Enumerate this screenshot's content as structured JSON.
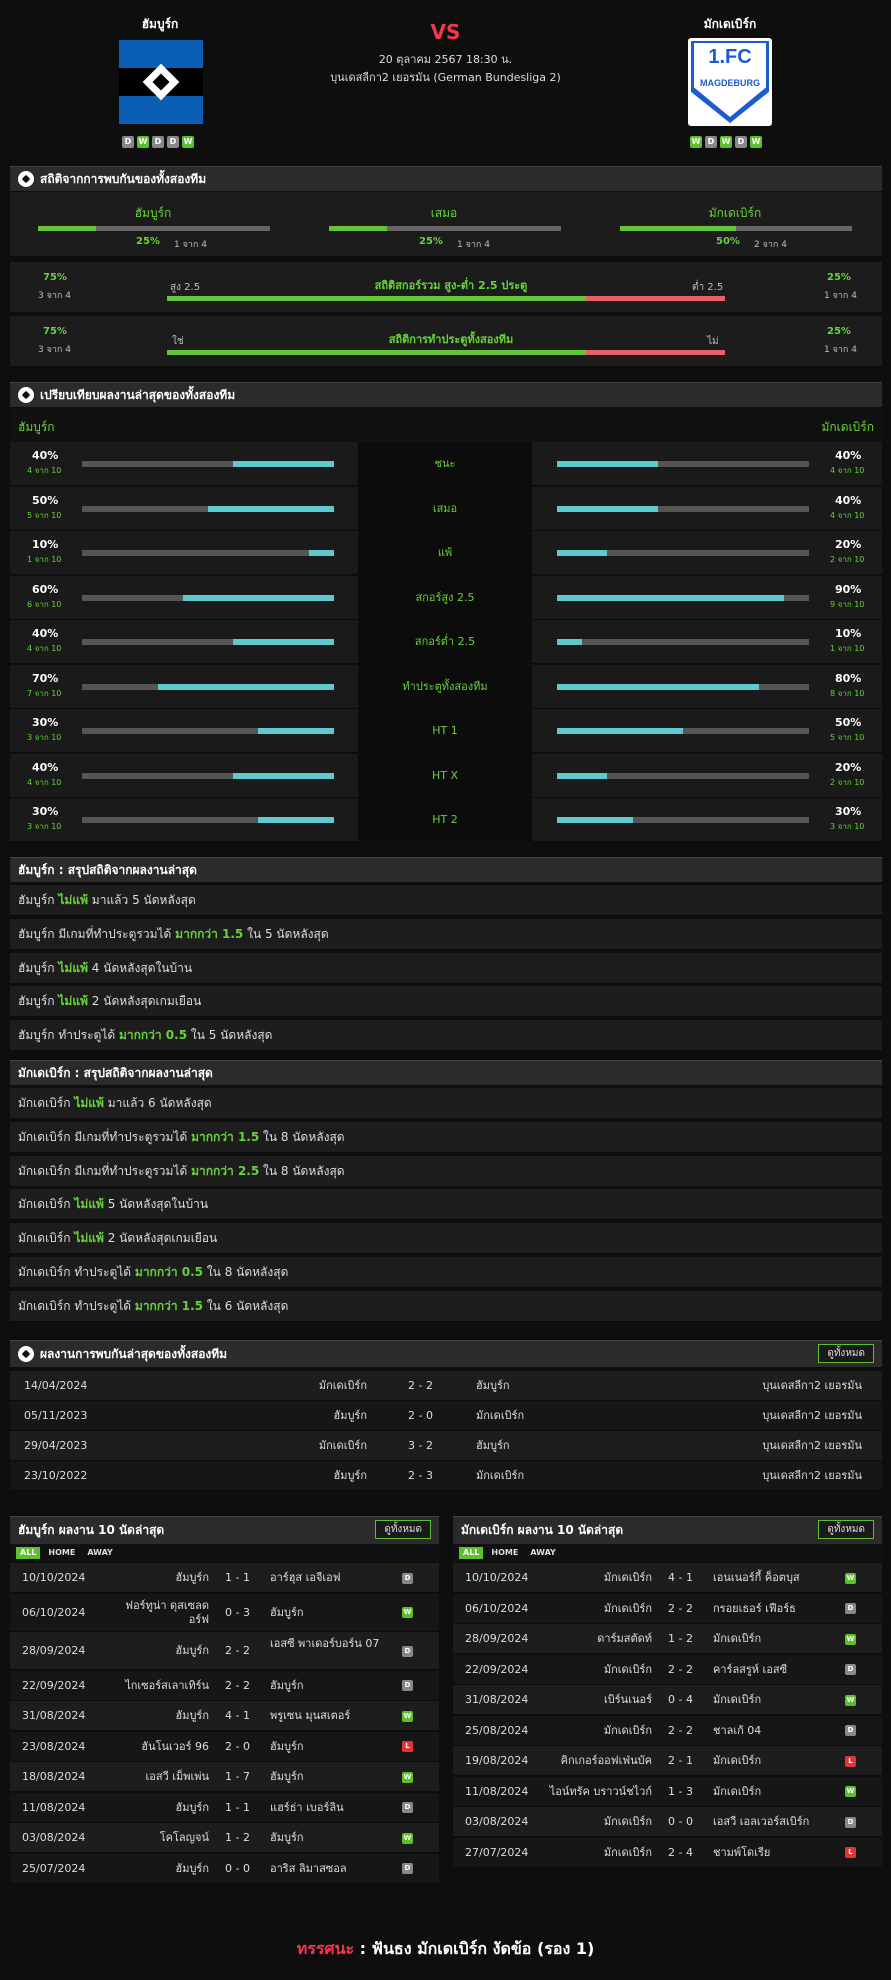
{
  "header": {
    "home_name": "ฮัมบูร์ก",
    "away_name": "มักเดเบิร์ก",
    "vs": "VS",
    "datetime": "20 ตุลาคม 2567 18:30 น.",
    "league": "บุนเดสลีกา2 เยอรมัน (German Bundesliga 2)",
    "home_form": [
      "D",
      "W",
      "D",
      "D",
      "W"
    ],
    "away_form": [
      "W",
      "D",
      "W",
      "D",
      "W"
    ],
    "away_logo_text1": "1.FC",
    "away_logo_text2": "MAGDEBURG",
    "colors": {
      "hsv_blue": "#0a5fb4",
      "fcm_blue": "#1d5bd0",
      "accent_red": "#f2374f",
      "green": "#66d33a",
      "teal": "#5ec9cf"
    }
  },
  "h2h": {
    "title": "สถิติจากการพบกันของทั้งสองทีม",
    "cols": [
      {
        "label": "ฮัมบูร์ก",
        "pct": "25%",
        "sub": "1 จาก 4",
        "value": 0.25
      },
      {
        "label": "เสมอ",
        "pct": "25%",
        "sub": "1 จาก 4",
        "value": 0.25
      },
      {
        "label": "มักเดเบิร์ก",
        "pct": "50%",
        "sub": "2 จาก 4",
        "value": 0.5
      }
    ],
    "ou": {
      "left_pct": "75%",
      "left_sub": "3 จาก 4",
      "left_label": "สูง 2.5",
      "title": "สถิติสกอร์รวม สูง-ต่ำ 2.5 ประตู",
      "right_label": "ต่ำ 2.5",
      "right_pct": "25%",
      "right_sub": "1 จาก 4",
      "value": 0.75
    },
    "btts": {
      "left_pct": "75%",
      "left_sub": "3 จาก 4",
      "left_label": "ใช่",
      "title": "สถิติการทำประตูทั้งสองทีม",
      "right_label": "ไม่",
      "right_pct": "25%",
      "right_sub": "1 จาก 4",
      "value": 0.75
    }
  },
  "compare": {
    "title": "เปรียบเทียบผลงานล่าสุดของทั้งสองทีม",
    "home": "ฮัมบูร์ก",
    "away": "มักเดเบิร์ก",
    "rows": [
      {
        "label": "ชนะ",
        "h_pct": "40%",
        "h_sub": "4 จาก 10",
        "h": 0.4,
        "a_pct": "40%",
        "a_sub": "4 จาก 10",
        "a": 0.4
      },
      {
        "label": "เสมอ",
        "h_pct": "50%",
        "h_sub": "5 จาก 10",
        "h": 0.5,
        "a_pct": "40%",
        "a_sub": "4 จาก 10",
        "a": 0.4
      },
      {
        "label": "แพ้",
        "h_pct": "10%",
        "h_sub": "1 จาก 10",
        "h": 0.1,
        "a_pct": "20%",
        "a_sub": "2 จาก 10",
        "a": 0.2
      },
      {
        "label": "สกอร์สูง 2.5",
        "h_pct": "60%",
        "h_sub": "6 จาก 10",
        "h": 0.6,
        "a_pct": "90%",
        "a_sub": "9 จาก 10",
        "a": 0.9
      },
      {
        "label": "สกอร์ต่ำ 2.5",
        "h_pct": "40%",
        "h_sub": "4 จาก 10",
        "h": 0.4,
        "a_pct": "10%",
        "a_sub": "1 จาก 10",
        "a": 0.1
      },
      {
        "label": "ทำประตูทั้งสองทีม",
        "h_pct": "70%",
        "h_sub": "7 จาก 10",
        "h": 0.7,
        "a_pct": "80%",
        "a_sub": "8 จาก 10",
        "a": 0.8
      },
      {
        "label": "HT 1",
        "h_pct": "30%",
        "h_sub": "3 จาก 10",
        "h": 0.3,
        "a_pct": "50%",
        "a_sub": "5 จาก 10",
        "a": 0.5
      },
      {
        "label": "HT X",
        "h_pct": "40%",
        "h_sub": "4 จาก 10",
        "h": 0.4,
        "a_pct": "20%",
        "a_sub": "2 จาก 10",
        "a": 0.2
      },
      {
        "label": "HT 2",
        "h_pct": "30%",
        "h_sub": "3 จาก 10",
        "h": 0.3,
        "a_pct": "30%",
        "a_sub": "3 จาก 10",
        "a": 0.3
      }
    ]
  },
  "home_summary": {
    "title": "ฮัมบูร์ก : สรุปสถิติจากผลงานล่าสุด",
    "rows": [
      [
        {
          "t": "ฮัมบูร์ก "
        },
        {
          "t": "ไม่แพ้",
          "g": true
        },
        {
          "t": " มาแล้ว 5 นัดหลังสุด"
        }
      ],
      [
        {
          "t": "ฮัมบูร์ก มีเกมที่ทำประตูรวมได้ "
        },
        {
          "t": "มากกว่า 1.5",
          "g": true
        },
        {
          "t": " ใน 5 นัดหลังสุด"
        }
      ],
      [
        {
          "t": "ฮัมบูร์ก "
        },
        {
          "t": "ไม่แพ้",
          "g": true
        },
        {
          "t": " 4 นัดหลังสุดในบ้าน"
        }
      ],
      [
        {
          "t": "ฮัมบูร์ก "
        },
        {
          "t": "ไม่แพ้",
          "g": true
        },
        {
          "t": " 2 นัดหลังสุดเกมเยือน"
        }
      ],
      [
        {
          "t": "ฮัมบูร์ก ทำประตูได้ "
        },
        {
          "t": "มากกว่า 0.5",
          "g": true
        },
        {
          "t": " ใน 5 นัดหลังสุด"
        }
      ]
    ]
  },
  "away_summary": {
    "title": "มักเดเบิร์ก : สรุปสถิติจากผลงานล่าสุด",
    "rows": [
      [
        {
          "t": "มักเดเบิร์ก "
        },
        {
          "t": "ไม่แพ้",
          "g": true
        },
        {
          "t": " มาแล้ว 6 นัดหลังสุด"
        }
      ],
      [
        {
          "t": "มักเดเบิร์ก มีเกมที่ทำประตูรวมได้ "
        },
        {
          "t": "มากกว่า 1.5",
          "g": true
        },
        {
          "t": " ใน 8 นัดหลังสุด"
        }
      ],
      [
        {
          "t": "มักเดเบิร์ก มีเกมที่ทำประตูรวมได้ "
        },
        {
          "t": "มากกว่า 2.5",
          "g": true
        },
        {
          "t": " ใน 8 นัดหลังสุด"
        }
      ],
      [
        {
          "t": "มักเดเบิร์ก "
        },
        {
          "t": "ไม่แพ้",
          "g": true
        },
        {
          "t": " 5 นัดหลังสุดในบ้าน"
        }
      ],
      [
        {
          "t": "มักเดเบิร์ก "
        },
        {
          "t": "ไม่แพ้",
          "g": true
        },
        {
          "t": " 2 นัดหลังสุดเกมเยือน"
        }
      ],
      [
        {
          "t": "มักเดเบิร์ก ทำประตูได้ "
        },
        {
          "t": "มากกว่า 0.5",
          "g": true
        },
        {
          "t": " ใน 8 นัดหลังสุด"
        }
      ],
      [
        {
          "t": "มักเดเบิร์ก ทำประตูได้ "
        },
        {
          "t": "มากกว่า 1.5",
          "g": true
        },
        {
          "t": " ใน 6 นัดหลังสุด"
        }
      ]
    ]
  },
  "h2h_results": {
    "title": "ผลงานการพบกันล่าสุดของทั้งสองทีม",
    "button": "ดูทั้งหมด",
    "rows": [
      {
        "date": "14/04/2024",
        "home": "มักเดเบิร์ก",
        "score": "2 - 2",
        "away": "ฮัมบูร์ก",
        "league": "บุนเดสลีกา2 เยอรมัน"
      },
      {
        "date": "05/11/2023",
        "home": "ฮัมบูร์ก",
        "score": "2 - 0",
        "away": "มักเดเบิร์ก",
        "league": "บุนเดสลีกา2 เยอรมัน"
      },
      {
        "date": "29/04/2023",
        "home": "มักเดเบิร์ก",
        "score": "3 - 2",
        "away": "ฮัมบูร์ก",
        "league": "บุนเดสลีกา2 เยอรมัน"
      },
      {
        "date": "23/10/2022",
        "home": "ฮัมบูร์ก",
        "score": "2 - 3",
        "away": "มักเดเบิร์ก",
        "league": "บุนเดสลีกา2 เยอรมัน"
      }
    ]
  },
  "home_last10": {
    "title": "ฮัมบูร์ก ผลงาน 10 นัดล่าสุด",
    "button": "ดูทั้งหมด",
    "tabs": [
      "ALL",
      "HOME",
      "AWAY"
    ],
    "rows": [
      {
        "date": "10/10/2024",
        "home": "ฮัมบูร์ก",
        "score": "1 - 1",
        "away": "อาร์ฮุส เอจีเอฟ",
        "r": "D"
      },
      {
        "date": "06/10/2024",
        "home": "ฟอร์ทูน่า ดุสเซลดอร์ฟ",
        "score": "0 - 3",
        "away": "ฮัมบูร์ก",
        "r": "W",
        "tall": true
      },
      {
        "date": "28/09/2024",
        "home": "ฮัมบูร์ก",
        "score": "2 - 2",
        "away": "เอสซี พาเดอร์บอร์น 07",
        "r": "D",
        "tall": true
      },
      {
        "date": "22/09/2024",
        "home": "ไกเซอร์สเลาเทิร์น",
        "score": "2 - 2",
        "away": "ฮัมบูร์ก",
        "r": "D"
      },
      {
        "date": "31/08/2024",
        "home": "ฮัมบูร์ก",
        "score": "4 - 1",
        "away": "พรูเซน มุนสเตอร์",
        "r": "W"
      },
      {
        "date": "23/08/2024",
        "home": "ฮันโนเวอร์ 96",
        "score": "2 - 0",
        "away": "ฮัมบูร์ก",
        "r": "L"
      },
      {
        "date": "18/08/2024",
        "home": "เอสวี เม็พเพ่น",
        "score": "1 - 7",
        "away": "ฮัมบูร์ก",
        "r": "W"
      },
      {
        "date": "11/08/2024",
        "home": "ฮัมบูร์ก",
        "score": "1 - 1",
        "away": "แฮร์ธ่า เบอร์ลิน",
        "r": "D"
      },
      {
        "date": "03/08/2024",
        "home": "โคโลญจน์",
        "score": "1 - 2",
        "away": "ฮัมบูร์ก",
        "r": "W"
      },
      {
        "date": "25/07/2024",
        "home": "ฮัมบูร์ก",
        "score": "0 - 0",
        "away": "อาริส ลิมาสซอล",
        "r": "D"
      }
    ]
  },
  "away_last10": {
    "title": "มักเดเบิร์ก ผลงาน 10 นัดล่าสุด",
    "button": "ดูทั้งหมด",
    "tabs": [
      "ALL",
      "HOME",
      "AWAY"
    ],
    "rows": [
      {
        "date": "10/10/2024",
        "home": "มักเดเบิร์ก",
        "score": "4 - 1",
        "away": "เอนเนอร์กี้ ค็อตบุส",
        "r": "W"
      },
      {
        "date": "06/10/2024",
        "home": "มักเดเบิร์ก",
        "score": "2 - 2",
        "away": "กรอยเธอร์ เฟือร์ธ",
        "r": "D"
      },
      {
        "date": "28/09/2024",
        "home": "ดาร์มสตัดท์",
        "score": "1 - 2",
        "away": "มักเดเบิร์ก",
        "r": "W"
      },
      {
        "date": "22/09/2024",
        "home": "มักเดเบิร์ก",
        "score": "2 - 2",
        "away": "คาร์ลสรูห์ เอสซี",
        "r": "D"
      },
      {
        "date": "31/08/2024",
        "home": "เบิร์นเนอร์",
        "score": "0 - 4",
        "away": "มักเดเบิร์ก",
        "r": "W"
      },
      {
        "date": "25/08/2024",
        "home": "มักเดเบิร์ก",
        "score": "2 - 2",
        "away": "ชาลเก้ 04",
        "r": "D"
      },
      {
        "date": "19/08/2024",
        "home": "คิกเกอร์ออฟเฟ่นบัค",
        "score": "2 - 1",
        "away": "มักเดเบิร์ก",
        "r": "L"
      },
      {
        "date": "11/08/2024",
        "home": "ไอน์ทรัค บราวน์ชไวก์",
        "score": "1 - 3",
        "away": "มักเดเบิร์ก",
        "r": "W"
      },
      {
        "date": "03/08/2024",
        "home": "มักเดเบิร์ก",
        "score": "0 - 0",
        "away": "เอสวี เอลเวอร์สเบิร์ก",
        "r": "D"
      },
      {
        "date": "27/07/2024",
        "home": "มักเดเบิร์ก",
        "score": "2 - 4",
        "away": "ชามพ์โดเรีย",
        "r": "L"
      }
    ]
  },
  "prediction": {
    "label": "ทรรศนะ",
    "sep": " : ",
    "text": "ฟันธง มักเดเบิร์ก งัดข้อ (รอง 1)"
  }
}
